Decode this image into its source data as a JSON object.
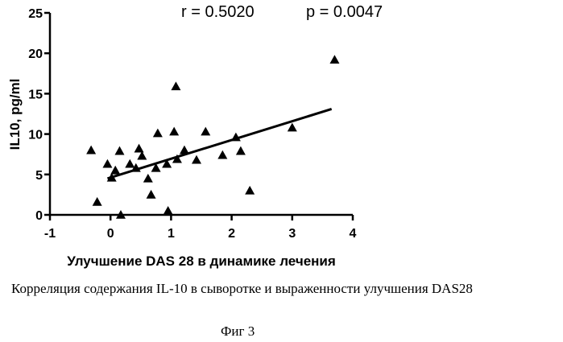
{
  "chart_data": {
    "type": "scatter",
    "stats": {
      "r": "r = 0.5020",
      "p": "p = 0.0047"
    },
    "xlabel": "Улучшение DAS 28 в динамике лечения",
    "ylabel": "IL10, pg/ml",
    "xlim": [
      -1,
      4
    ],
    "ylim": [
      0,
      25
    ],
    "xticks": [
      "-1",
      "0",
      "1",
      "2",
      "3",
      "4"
    ],
    "yticks": [
      "0",
      "5",
      "10",
      "15",
      "20",
      "25"
    ],
    "marker": "triangle",
    "points": [
      {
        "x": -0.32,
        "y": 8.0
      },
      {
        "x": -0.22,
        "y": 1.6
      },
      {
        "x": -0.05,
        "y": 6.3
      },
      {
        "x": 0.02,
        "y": 4.6
      },
      {
        "x": 0.08,
        "y": 5.5
      },
      {
        "x": 0.15,
        "y": 7.9
      },
      {
        "x": 0.17,
        "y": 0.0
      },
      {
        "x": 0.32,
        "y": 6.3
      },
      {
        "x": 0.42,
        "y": 5.8
      },
      {
        "x": 0.47,
        "y": 8.2
      },
      {
        "x": 0.52,
        "y": 7.3
      },
      {
        "x": 0.62,
        "y": 4.5
      },
      {
        "x": 0.67,
        "y": 2.5
      },
      {
        "x": 0.75,
        "y": 5.8
      },
      {
        "x": 0.78,
        "y": 10.1
      },
      {
        "x": 0.93,
        "y": 6.3
      },
      {
        "x": 0.95,
        "y": 0.5
      },
      {
        "x": 1.05,
        "y": 10.3
      },
      {
        "x": 1.08,
        "y": 15.9
      },
      {
        "x": 1.1,
        "y": 6.9
      },
      {
        "x": 1.22,
        "y": 8.0
      },
      {
        "x": 1.42,
        "y": 6.8
      },
      {
        "x": 1.57,
        "y": 10.3
      },
      {
        "x": 1.85,
        "y": 7.4
      },
      {
        "x": 2.07,
        "y": 9.6
      },
      {
        "x": 2.15,
        "y": 7.9
      },
      {
        "x": 2.3,
        "y": 3.0
      },
      {
        "x": 3.0,
        "y": 10.8
      },
      {
        "x": 3.7,
        "y": 19.2
      }
    ],
    "regression": {
      "x": [
        -0.05,
        3.65
      ],
      "y": [
        4.5,
        13.1
      ]
    },
    "grid": false
  },
  "caption": "Корреляция содержания IL-10 в сыворотке и выраженности улучшения DAS28",
  "figure_label": "Фиг 3"
}
